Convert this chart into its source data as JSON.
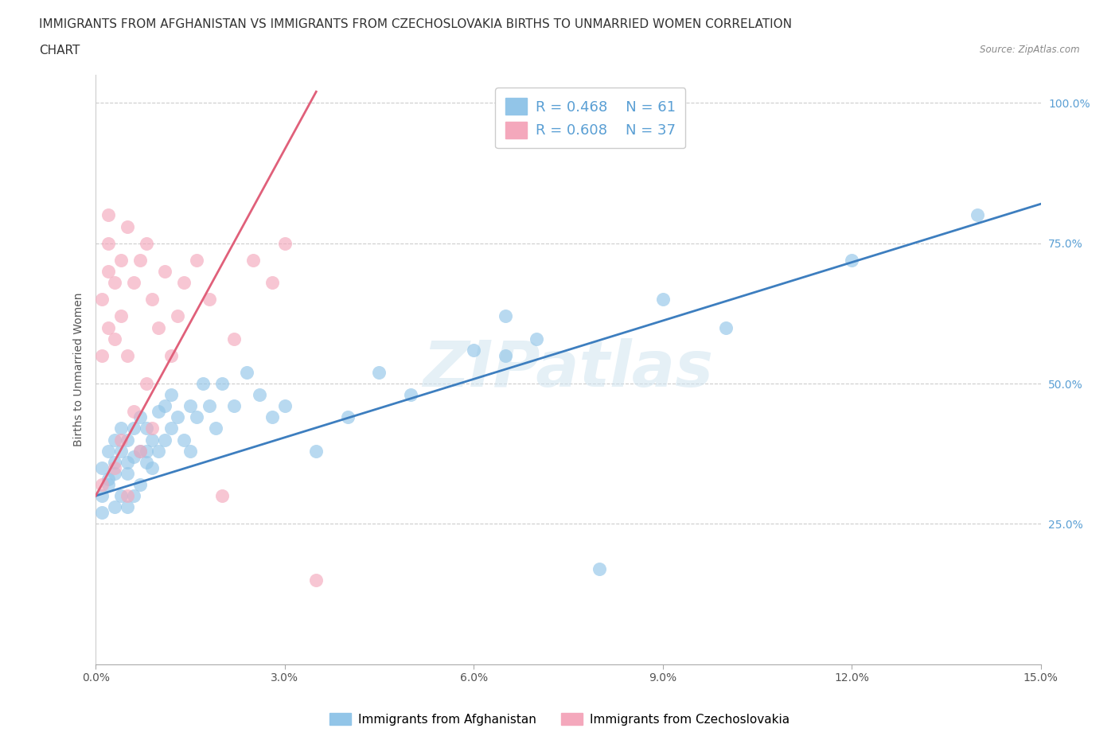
{
  "title_line1": "IMMIGRANTS FROM AFGHANISTAN VS IMMIGRANTS FROM CZECHOSLOVAKIA BIRTHS TO UNMARRIED WOMEN CORRELATION",
  "title_line2": "CHART",
  "source": "Source: ZipAtlas.com",
  "ylabel": "Births to Unmarried Women",
  "xlim": [
    0.0,
    0.15
  ],
  "ylim": [
    0.0,
    1.05
  ],
  "xticks": [
    0.0,
    0.03,
    0.06,
    0.09,
    0.12,
    0.15
  ],
  "xticklabels": [
    "0.0%",
    "3.0%",
    "6.0%",
    "9.0%",
    "12.0%",
    "15.0%"
  ],
  "ytick_positions": [
    0.25,
    0.5,
    0.75,
    1.0
  ],
  "ytick_labels": [
    "25.0%",
    "50.0%",
    "75.0%",
    "100.0%"
  ],
  "legend_label_blue": "Immigrants from Afghanistan",
  "legend_label_pink": "Immigrants from Czechoslovakia",
  "blue_color": "#92c5e8",
  "pink_color": "#f4a8bc",
  "trend_blue": "#3d7ebf",
  "trend_pink": "#e0607a",
  "tick_color": "#5a9fd4",
  "watermark": "ZIPatlas",
  "blue_scatter_x": [
    0.001,
    0.001,
    0.001,
    0.002,
    0.002,
    0.002,
    0.003,
    0.003,
    0.003,
    0.003,
    0.004,
    0.004,
    0.004,
    0.005,
    0.005,
    0.005,
    0.005,
    0.006,
    0.006,
    0.006,
    0.007,
    0.007,
    0.007,
    0.008,
    0.008,
    0.008,
    0.009,
    0.009,
    0.01,
    0.01,
    0.011,
    0.011,
    0.012,
    0.012,
    0.013,
    0.014,
    0.015,
    0.015,
    0.016,
    0.017,
    0.018,
    0.019,
    0.02,
    0.022,
    0.024,
    0.026,
    0.028,
    0.03,
    0.035,
    0.04,
    0.045,
    0.05,
    0.06,
    0.065,
    0.065,
    0.07,
    0.08,
    0.09,
    0.1,
    0.12,
    0.14
  ],
  "blue_scatter_y": [
    0.35,
    0.3,
    0.27,
    0.32,
    0.38,
    0.33,
    0.28,
    0.34,
    0.4,
    0.36,
    0.3,
    0.38,
    0.42,
    0.28,
    0.34,
    0.4,
    0.36,
    0.3,
    0.37,
    0.42,
    0.32,
    0.38,
    0.44,
    0.36,
    0.42,
    0.38,
    0.35,
    0.4,
    0.38,
    0.45,
    0.4,
    0.46,
    0.42,
    0.48,
    0.44,
    0.4,
    0.46,
    0.38,
    0.44,
    0.5,
    0.46,
    0.42,
    0.5,
    0.46,
    0.52,
    0.48,
    0.44,
    0.46,
    0.38,
    0.44,
    0.52,
    0.48,
    0.56,
    0.62,
    0.55,
    0.58,
    0.17,
    0.65,
    0.6,
    0.72,
    0.8
  ],
  "pink_scatter_x": [
    0.001,
    0.001,
    0.001,
    0.002,
    0.002,
    0.002,
    0.002,
    0.003,
    0.003,
    0.003,
    0.004,
    0.004,
    0.004,
    0.005,
    0.005,
    0.005,
    0.006,
    0.006,
    0.007,
    0.007,
    0.008,
    0.008,
    0.009,
    0.009,
    0.01,
    0.011,
    0.012,
    0.013,
    0.014,
    0.016,
    0.018,
    0.02,
    0.022,
    0.025,
    0.028,
    0.03,
    0.035
  ],
  "pink_scatter_y": [
    0.32,
    0.55,
    0.65,
    0.6,
    0.7,
    0.75,
    0.8,
    0.35,
    0.58,
    0.68,
    0.4,
    0.62,
    0.72,
    0.3,
    0.55,
    0.78,
    0.45,
    0.68,
    0.38,
    0.72,
    0.5,
    0.75,
    0.42,
    0.65,
    0.6,
    0.7,
    0.55,
    0.62,
    0.68,
    0.72,
    0.65,
    0.3,
    0.58,
    0.72,
    0.68,
    0.75,
    0.15
  ],
  "blue_trend_x0": 0.0,
  "blue_trend_x1": 0.15,
  "blue_trend_y0": 0.3,
  "blue_trend_y1": 0.82,
  "pink_trend_x0": 0.0,
  "pink_trend_x1": 0.035,
  "pink_trend_y0": 0.3,
  "pink_trend_y1": 1.02
}
